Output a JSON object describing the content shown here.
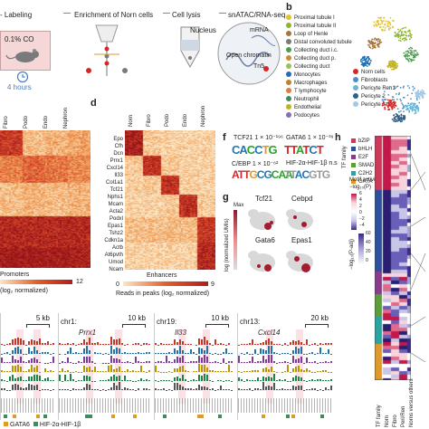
{
  "panel_a": {
    "steps": [
      "- Labeling",
      "Enrichment of Norn cells",
      "Cell lysis",
      "snATAC/RNA-seq"
    ],
    "co_label": "0.1% CO",
    "time_label": "4 hours",
    "nucleus_label": "Nucleus",
    "mrna_label": "mRNA",
    "chromatin_label": "Open chromatin",
    "tn5_label": "Tn5"
  },
  "panel_b": {
    "letter": "b",
    "legend": [
      {
        "label": "Proximal tubule I",
        "color": "#e6c229"
      },
      {
        "label": "Proximal tubule II",
        "color": "#8fb33a"
      },
      {
        "label": "Loop of Henle",
        "color": "#a7743a"
      },
      {
        "label": "Distal convoluted tubule",
        "color": "#7a7a7a"
      },
      {
        "label": "Collecting duct i.c.",
        "color": "#4e9a4e"
      },
      {
        "label": "Collecting duct p.",
        "color": "#d18a2e"
      },
      {
        "label": "Collecting duct",
        "color": "#97c255"
      },
      {
        "label": "Monocytes",
        "color": "#1f6fb2"
      },
      {
        "label": "Macrophages",
        "color": "#c77c2a"
      },
      {
        "label": "T lymphocyte",
        "color": "#e07b39"
      },
      {
        "label": "Neutrophil",
        "color": "#3c8d5b"
      },
      {
        "label": "Endothelial",
        "color": "#c1b31f"
      },
      {
        "label": "Podocytes",
        "color": "#8c6bb1"
      }
    ],
    "legend2": [
      {
        "label": "Norn cells",
        "color": "#d62728"
      },
      {
        "label": "Fibroblasts",
        "color": "#4a90c2"
      },
      {
        "label": "Pericyte Ren1⁺",
        "color": "#6bb6d6"
      },
      {
        "label": "Pericyte 2",
        "color": "#2c5f8a"
      },
      {
        "label": "Pericyte 3",
        "color": "#a2c8e4"
      }
    ]
  },
  "panel_c": {
    "columns": [
      "Fibro",
      "Podo",
      "Endo",
      "Nephron"
    ],
    "axis_label": "Promoters",
    "scale_min": "0",
    "scale_max": "12",
    "scale_label": "(log₂ normalized)"
  },
  "panel_d": {
    "letter": "d",
    "columns": [
      "Norn",
      "Fibro",
      "Podo",
      "Endo",
      "Nephron"
    ],
    "genes": [
      "Epo",
      "Cfh",
      "Dcn",
      "Prrx1",
      "Cxcl14",
      "Il33",
      "Col1a1",
      "Tcf21",
      "Nphs1",
      "Mcam",
      "Acta2",
      "Podxl",
      "Epas1",
      "Tshz2",
      "Cdkn1a",
      "Actb",
      "At6pvth",
      "Umod",
      "Ncam"
    ],
    "axis_label": "Enhancers",
    "scale_min": "0",
    "scale_max": "9",
    "scale_label": "Reads in peaks (log₂ normalized)"
  },
  "panel_f": {
    "letter": "f",
    "motifs": [
      {
        "name": "TCF21 1 × 10⁻¹⁹⁶",
        "logo": "CACCTG"
      },
      {
        "name": "GATA6 1 × 10⁻³⁹",
        "logo": "TTATCT"
      },
      {
        "name": "C/EBP 1 × 10⁻⁶²",
        "logo": "TTGCGCAA"
      },
      {
        "name": "HIF-2α-HIF-1β  n.s",
        "logo": "CACGTG"
      }
    ]
  },
  "panel_g": {
    "letter": "g",
    "genes": [
      "Tcf21",
      "Cebpd",
      "Gata6",
      "Epas1"
    ],
    "scale_label": "log (normalized UMIs)",
    "scale_max": "Max"
  },
  "panel_h": {
    "letter": "h",
    "tf_family_title": "TF family",
    "families": [
      {
        "label": "bZIP",
        "color": "#d1385a"
      },
      {
        "label": "bHLH",
        "color": "#2c4f9e"
      },
      {
        "label": "E2F",
        "color": "#8c3a8c"
      },
      {
        "label": "SMAD",
        "color": "#5b9e3a"
      },
      {
        "label": "C2H2",
        "color": "#2aa3a3"
      },
      {
        "label": "GATA",
        "color": "#e09a2a"
      }
    ],
    "motif_title": "Motif activity",
    "motif_sub": "−log₁₀(P)",
    "motif_ticks": [
      "6",
      "4",
      "2",
      "0",
      "−2",
      "−4"
    ],
    "p_title": "−log₁₀(P-adj)",
    "p_ticks": [
      "60",
      "40",
      "20",
      "0"
    ],
    "columns": [
      "TF family",
      "Norn",
      "Fibro",
      "Peri/Ren",
      "Norns versus others"
    ]
  },
  "panel_tracks": {
    "scales": [
      "5 kb",
      "10 kb",
      "10 kb",
      "20 kb"
    ],
    "loci": [
      {
        "chr": "",
        "gene": ""
      },
      {
        "chr": "chr1:",
        "gene": "Prrx1"
      },
      {
        "chr": "chr19:",
        "gene": "Il33"
      },
      {
        "chr": "chr13:",
        "gene": "Cxcl14"
      }
    ],
    "legend": [
      {
        "label": "GATA6",
        "color": "#e09a2a"
      },
      {
        "label": "HIF-2α-HIF-1β",
        "color": "#3c8d5b"
      }
    ]
  },
  "colors": {
    "heat_low": "#fbe7c6",
    "heat_high": "#b11d1d",
    "accent_pink": "#e6787f"
  }
}
